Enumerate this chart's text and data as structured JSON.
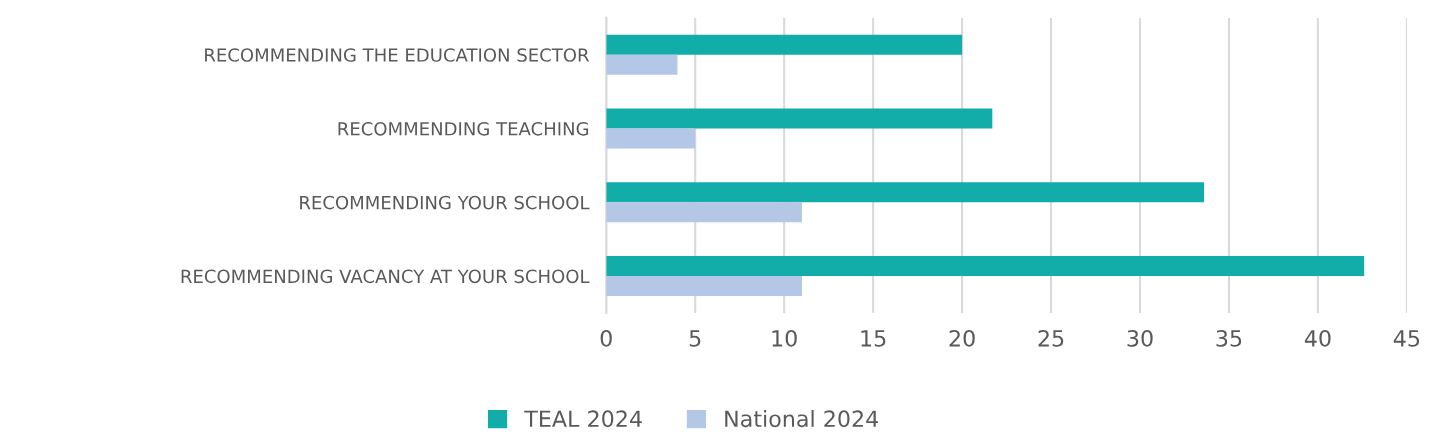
{
  "chart_data": {
    "type": "bar",
    "orientation": "horizontal",
    "categories": [
      "RECOMMENDING THE EDUCATION SECTOR",
      "RECOMMENDING TEACHING",
      "RECOMMENDING YOUR SCHOOL",
      "RECOMMENDING VACANCY AT YOUR SCHOOL"
    ],
    "series": [
      {
        "name": "TEAL 2024",
        "color": "#12ada9",
        "values": [
          20,
          21.7,
          33.6,
          42.6
        ]
      },
      {
        "name": "National 2024",
        "color": "#b4c7e7",
        "values": [
          4,
          5,
          11,
          11
        ]
      }
    ],
    "xlim": [
      0,
      45
    ],
    "xticks": [
      0,
      5,
      10,
      15,
      20,
      25,
      30,
      35,
      40,
      45
    ],
    "grid": "x",
    "legend": "bottom"
  }
}
